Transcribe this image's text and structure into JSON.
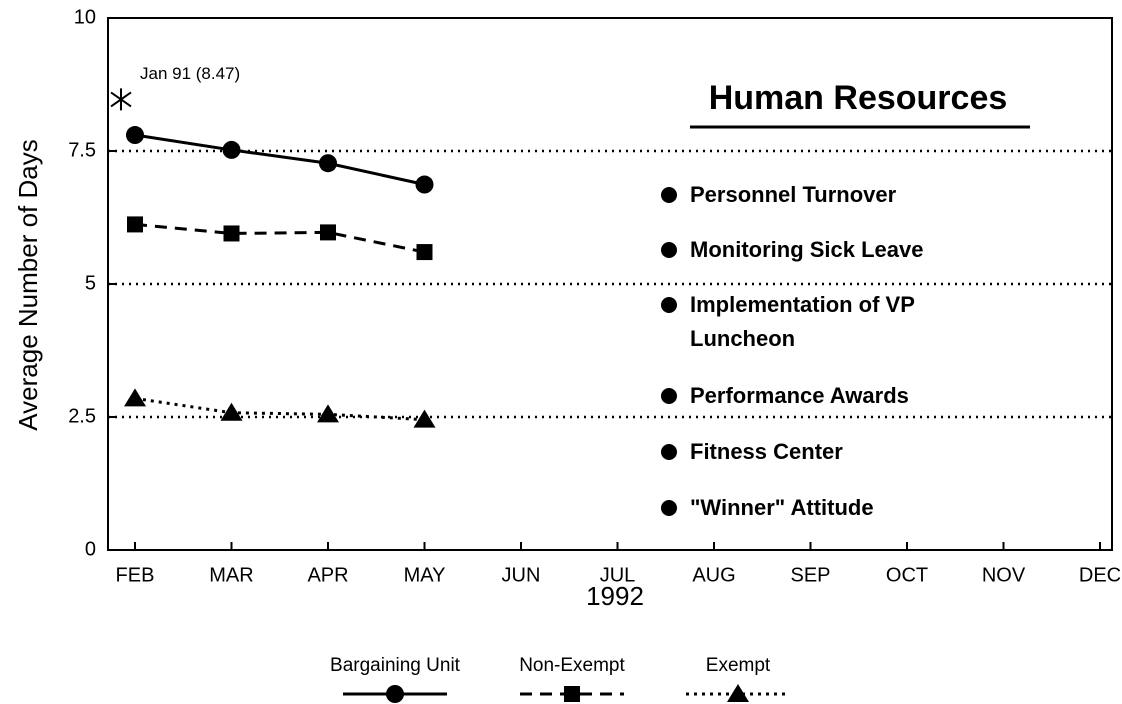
{
  "chart_data": {
    "type": "line",
    "categories": [
      "FEB",
      "MAR",
      "APR",
      "MAY",
      "JUN",
      "JUL",
      "AUG",
      "SEP",
      "OCT",
      "NOV",
      "DEC"
    ],
    "x_label": "1992",
    "y_label": "Average Number of Days",
    "ylim": [
      0,
      10
    ],
    "yticks": [
      0,
      2.5,
      5,
      7.5,
      10
    ],
    "grid": true,
    "series": [
      {
        "name": "Bargaining Unit",
        "color": "#000000",
        "line_style": "solid",
        "marker": "circle",
        "values": [
          7.8,
          7.52,
          7.27,
          6.87,
          null,
          null,
          null,
          null,
          null,
          null,
          null
        ]
      },
      {
        "name": "Non-Exempt",
        "color": "#000000",
        "line_style": "dashed",
        "marker": "square",
        "values": [
          6.12,
          5.95,
          5.97,
          5.6,
          null,
          null,
          null,
          null,
          null,
          null,
          null
        ]
      },
      {
        "name": "Exempt",
        "color": "#000000",
        "line_style": "dotted",
        "marker": "triangle",
        "values": [
          2.85,
          2.58,
          2.55,
          2.45,
          null,
          null,
          null,
          null,
          null,
          null,
          null
        ]
      }
    ],
    "annotations": [
      {
        "text": "Jan 91 (8.47)",
        "value": 8.47
      }
    ],
    "panel": {
      "heading": "Human Resources",
      "items": [
        "Personnel Turnover",
        "Monitoring Sick Leave",
        "Implementation of VP Luncheon",
        "Performance Awards",
        "Fitness Center",
        "\"Winner\" Attitude"
      ]
    }
  }
}
